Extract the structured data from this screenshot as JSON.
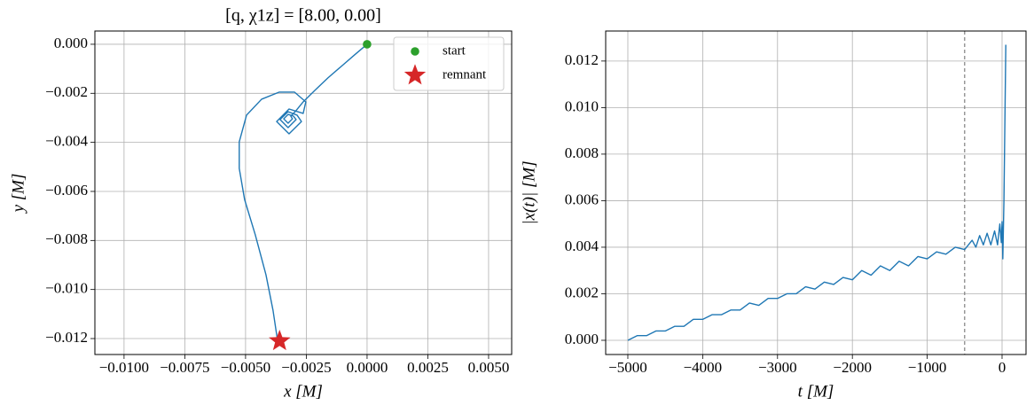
{
  "chart_data": [
    {
      "type": "line",
      "title": "[q, χ1z] = [8.00, 0.00]",
      "xlabel": "x [M]",
      "ylabel": "y [M]",
      "color": "#1f77b4",
      "grid": true,
      "legend": "upper right",
      "x": [
        0,
        -0.00051,
        -0.00106,
        -0.00161,
        -0.00215,
        -0.00263,
        -0.00296,
        -0.00314,
        -0.00307,
        -0.00325,
        -0.00343,
        -0.00325,
        -0.00303,
        -0.00292,
        -0.00325,
        -0.00358,
        -0.00325,
        -0.00288,
        -0.0027,
        -0.00321,
        -0.00372,
        -0.00321,
        -0.00263,
        -0.00252,
        -0.00299,
        -0.00361,
        -0.00434,
        -0.00496,
        -0.00526,
        -0.00526,
        -0.00504,
        -0.0046,
        -0.00416,
        -0.00387,
        -0.00369
      ],
      "values": [
        0,
        -0.00043,
        -0.0009,
        -0.00137,
        -0.00188,
        -0.00235,
        -0.00275,
        -0.00293,
        -0.00304,
        -0.00322,
        -0.00304,
        -0.00286,
        -0.00293,
        -0.00307,
        -0.0034,
        -0.00307,
        -0.00275,
        -0.00289,
        -0.00315,
        -0.00365,
        -0.00315,
        -0.00264,
        -0.00282,
        -0.00235,
        -0.00195,
        -0.00195,
        -0.00224,
        -0.00289,
        -0.00398,
        -0.00506,
        -0.00633,
        -0.00777,
        -0.0094,
        -0.01085,
        -0.01204
      ],
      "series": [
        {
          "name": "start",
          "color": "#2ca02c",
          "marker": "circle",
          "x": [
            0
          ],
          "values": [
            0
          ]
        },
        {
          "name": "remnant",
          "color": "#d62728",
          "marker": "star",
          "x": [
            -0.0036
          ],
          "values": [
            -0.0121
          ]
        }
      ],
      "xlim": [
        -0.0112,
        0.00595
      ],
      "ylim": [
        -0.01265,
        0.00054
      ],
      "xticks": [
        {
          "value": -0.01,
          "label": "−0.0100"
        },
        {
          "value": -0.0075,
          "label": "−0.0075"
        },
        {
          "value": -0.005,
          "label": "−0.0050"
        },
        {
          "value": -0.0025,
          "label": "−0.0025"
        },
        {
          "value": 0,
          "label": "0.0000"
        },
        {
          "value": 0.0025,
          "label": "0.0025"
        },
        {
          "value": 0.005,
          "label": "0.0050"
        }
      ],
      "yticks": [
        {
          "value": 0,
          "label": "0.000"
        },
        {
          "value": -0.002,
          "label": "−0.002"
        },
        {
          "value": -0.004,
          "label": "−0.004"
        },
        {
          "value": -0.006,
          "label": "−0.006"
        },
        {
          "value": -0.008,
          "label": "−0.008"
        },
        {
          "value": -0.01,
          "label": "−0.010"
        },
        {
          "value": -0.012,
          "label": "−0.012"
        }
      ]
    },
    {
      "type": "line",
      "xlabel": "t [M]",
      "ylabel": "|x(t)| [M]",
      "color": "#1f77b4",
      "grid": true,
      "vline": -500,
      "vline_color": "#808080",
      "x": [
        -5000,
        -4875,
        -4750,
        -4625,
        -4500,
        -4375,
        -4250,
        -4125,
        -4000,
        -3875,
        -3750,
        -3625,
        -3500,
        -3375,
        -3250,
        -3125,
        -3000,
        -2875,
        -2750,
        -2625,
        -2500,
        -2375,
        -2250,
        -2125,
        -2000,
        -1875,
        -1750,
        -1625,
        -1500,
        -1375,
        -1250,
        -1125,
        -1000,
        -875,
        -750,
        -625,
        -500,
        -400,
        -350,
        -300,
        -250,
        -200,
        -150,
        -100,
        -60,
        -30,
        -10,
        0,
        10,
        25,
        40,
        50
      ],
      "values": [
        0,
        0.0002,
        0.0002,
        0.0004,
        0.0004,
        0.0006,
        0.0006,
        0.0009,
        0.0009,
        0.0011,
        0.0011,
        0.0013,
        0.0013,
        0.0016,
        0.0015,
        0.0018,
        0.0018,
        0.002,
        0.002,
        0.0023,
        0.0022,
        0.0025,
        0.0024,
        0.0027,
        0.0026,
        0.003,
        0.0028,
        0.0032,
        0.003,
        0.0034,
        0.0032,
        0.0036,
        0.0035,
        0.0038,
        0.0037,
        0.004,
        0.0039,
        0.0043,
        0.004,
        0.0045,
        0.0041,
        0.0046,
        0.0041,
        0.0047,
        0.0041,
        0.005,
        0.0042,
        0.0051,
        0.0035,
        0.006,
        0.01,
        0.0127
      ],
      "xlim": [
        -5296,
        320
      ],
      "ylim": [
        -0.00061,
        0.01329
      ],
      "xticks": [
        {
          "value": -5000,
          "label": "−5000"
        },
        {
          "value": -4000,
          "label": "−4000"
        },
        {
          "value": -3000,
          "label": "−3000"
        },
        {
          "value": -2000,
          "label": "−2000"
        },
        {
          "value": -1000,
          "label": "−1000"
        },
        0
      ],
      "yticks": [
        {
          "value": 0,
          "label": "0.000"
        },
        {
          "value": 0.002,
          "label": "0.002"
        },
        {
          "value": 0.004,
          "label": "0.004"
        },
        {
          "value": 0.006,
          "label": "0.006"
        },
        {
          "value": 0.008,
          "label": "0.008"
        },
        {
          "value": 0.01,
          "label": "0.010"
        },
        {
          "value": 0.012,
          "label": "0.012"
        }
      ]
    }
  ]
}
